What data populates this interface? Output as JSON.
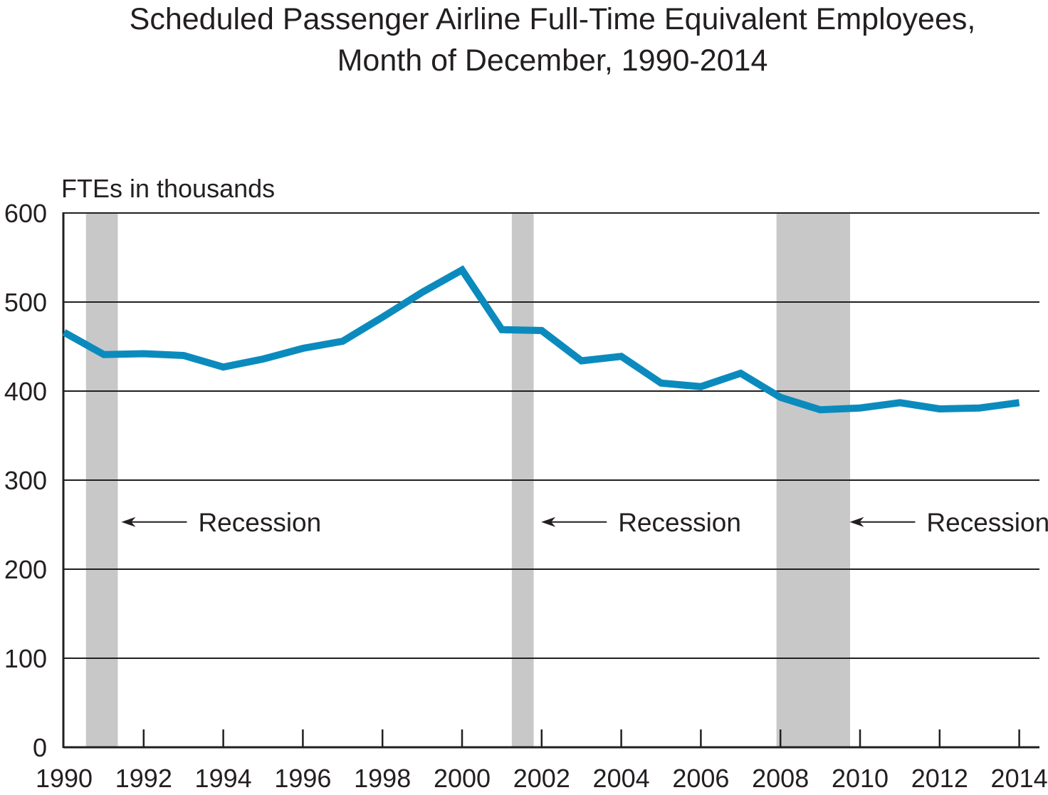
{
  "chart_data": {
    "type": "line",
    "title_line1": "Scheduled Passenger Airline Full-Time Equivalent Employees,",
    "title_line2": "Month of December, 1990-2014",
    "ylabel": "FTEs in thousands",
    "xlabel": "",
    "ylim": [
      0,
      600
    ],
    "xlim": [
      1990,
      2014
    ],
    "y_ticks": [
      0,
      100,
      200,
      300,
      400,
      500,
      600
    ],
    "x_tick_labels": [
      "1990",
      "1992",
      "1994",
      "1996",
      "1998",
      "2000",
      "2002",
      "2004",
      "2006",
      "2008",
      "2010",
      "2012",
      "2014"
    ],
    "grid": true,
    "series": [
      {
        "name": "FTEs",
        "color": "#0b8bbd",
        "x": [
          1990,
          1991,
          1992,
          1993,
          1994,
          1995,
          1996,
          1997,
          1998,
          1999,
          2000,
          2001,
          2002,
          2003,
          2004,
          2005,
          2006,
          2007,
          2008,
          2009,
          2010,
          2011,
          2012,
          2013,
          2014
        ],
        "values": [
          466,
          441,
          442,
          440,
          427,
          436,
          448,
          456,
          483,
          511,
          536,
          469,
          468,
          434,
          439,
          409,
          405,
          420,
          393,
          379,
          381,
          387,
          380,
          381,
          387
        ]
      }
    ],
    "recessions": [
      {
        "start": 1990.55,
        "end": 1991.35
      },
      {
        "start": 2001.25,
        "end": 2001.8
      },
      {
        "start": 2007.9,
        "end": 2009.75
      }
    ],
    "annotations": [
      {
        "text": "Recession",
        "arrow_to": 1991.35,
        "y": 253
      },
      {
        "text": "Recession",
        "arrow_to": 2001.9,
        "y": 253
      },
      {
        "text": "Recession",
        "arrow_to": 2009.65,
        "y": 253
      }
    ],
    "colors": {
      "recession": "#c8c8c8",
      "grid": "#231f20",
      "text": "#231f20"
    }
  }
}
